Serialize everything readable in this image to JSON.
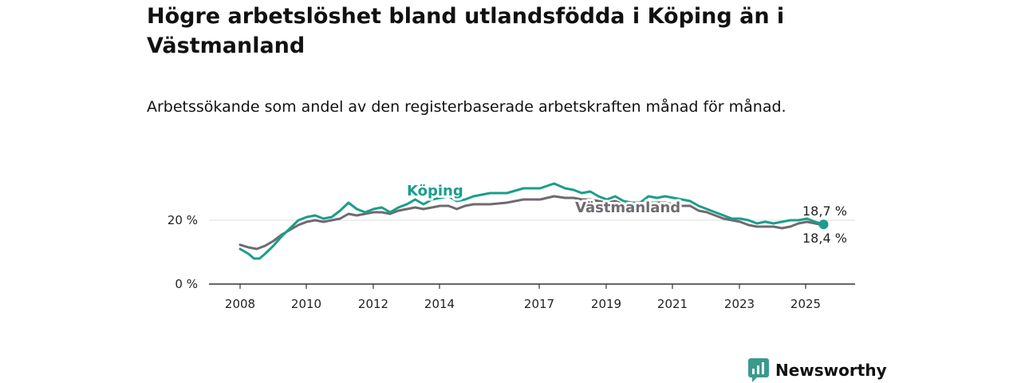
{
  "title": "Högre arbetslöshet bland utlandsfödda i Köping än i Västmanland",
  "subtitle": "Arbetssökande som andel av den registerbaserade arbetskraften månad för månad.",
  "brand": "Newsworthy",
  "colors": {
    "koping": "#1a9e8c",
    "vastmanland": "#6f6a70",
    "brand": "#3a9a8e",
    "axis": "#333333",
    "grid": "#dddddd"
  },
  "chart_data": {
    "type": "line",
    "title": "Högre arbetslöshet bland utlandsfödda i Köping än i Västmanland",
    "subtitle": "Arbetssökande som andel av den registerbaserade arbetskraften månad för månad.",
    "xlabel": "",
    "ylabel": "",
    "x_ticks": [
      "2008",
      "2010",
      "2012",
      "2014",
      "2017",
      "2019",
      "2021",
      "2023",
      "2025"
    ],
    "y_ticks": [
      "0 %",
      "20 %"
    ],
    "ylim": [
      0,
      33
    ],
    "grid": "horizontal",
    "legend": "inline labels",
    "end_labels": {
      "koping": "18,7 %",
      "vastmanland": "18,4 %"
    },
    "series": [
      {
        "name": "Köping",
        "color": "#1a9e8c",
        "points": [
          [
            "2008-01",
            11.0
          ],
          [
            "2008-04",
            9.5
          ],
          [
            "2008-06",
            8.0
          ],
          [
            "2008-08",
            8.0
          ],
          [
            "2008-10",
            9.5
          ],
          [
            "2009-01",
            12.0
          ],
          [
            "2009-04",
            15.0
          ],
          [
            "2009-07",
            17.5
          ],
          [
            "2009-10",
            20.0
          ],
          [
            "2010-01",
            21.0
          ],
          [
            "2010-04",
            21.5
          ],
          [
            "2010-07",
            20.5
          ],
          [
            "2010-10",
            21.0
          ],
          [
            "2011-01",
            23.0
          ],
          [
            "2011-04",
            25.5
          ],
          [
            "2011-07",
            23.5
          ],
          [
            "2011-10",
            22.5
          ],
          [
            "2012-01",
            23.5
          ],
          [
            "2012-04",
            24.0
          ],
          [
            "2012-07",
            22.5
          ],
          [
            "2012-10",
            24.0
          ],
          [
            "2013-01",
            25.0
          ],
          [
            "2013-04",
            26.5
          ],
          [
            "2013-07",
            25.0
          ],
          [
            "2013-10",
            26.5
          ],
          [
            "2014-01",
            27.0
          ],
          [
            "2014-04",
            27.5
          ],
          [
            "2014-07",
            26.0
          ],
          [
            "2014-10",
            26.5
          ],
          [
            "2015-01",
            27.5
          ],
          [
            "2015-07",
            28.5
          ],
          [
            "2016-01",
            28.5
          ],
          [
            "2016-07",
            30.0
          ],
          [
            "2017-01",
            30.0
          ],
          [
            "2017-06",
            31.5
          ],
          [
            "2017-10",
            30.0
          ],
          [
            "2018-01",
            29.5
          ],
          [
            "2018-04",
            28.5
          ],
          [
            "2018-07",
            29.0
          ],
          [
            "2018-10",
            27.5
          ],
          [
            "2019-01",
            26.5
          ],
          [
            "2019-04",
            27.5
          ],
          [
            "2019-07",
            26.0
          ],
          [
            "2019-10",
            25.5
          ],
          [
            "2020-01",
            25.5
          ],
          [
            "2020-04",
            27.5
          ],
          [
            "2020-07",
            27.0
          ],
          [
            "2020-10",
            27.5
          ],
          [
            "2021-01",
            27.0
          ],
          [
            "2021-04",
            26.5
          ],
          [
            "2021-07",
            26.0
          ],
          [
            "2021-10",
            24.5
          ],
          [
            "2022-01",
            23.5
          ],
          [
            "2022-04",
            22.5
          ],
          [
            "2022-07",
            21.5
          ],
          [
            "2022-10",
            20.5
          ],
          [
            "2023-01",
            20.5
          ],
          [
            "2023-04",
            20.0
          ],
          [
            "2023-07",
            19.0
          ],
          [
            "2023-10",
            19.5
          ],
          [
            "2024-01",
            19.0
          ],
          [
            "2024-04",
            19.5
          ],
          [
            "2024-07",
            20.0
          ],
          [
            "2024-10",
            20.0
          ],
          [
            "2025-01",
            20.5
          ],
          [
            "2025-04",
            19.5
          ],
          [
            "2025-07",
            18.7
          ]
        ]
      },
      {
        "name": "Västmanland",
        "color": "#6f6a70",
        "points": [
          [
            "2008-01",
            12.3
          ],
          [
            "2008-04",
            11.5
          ],
          [
            "2008-07",
            11.0
          ],
          [
            "2008-10",
            12.0
          ],
          [
            "2009-01",
            13.5
          ],
          [
            "2009-04",
            15.5
          ],
          [
            "2009-07",
            17.0
          ],
          [
            "2009-10",
            18.5
          ],
          [
            "2010-01",
            19.5
          ],
          [
            "2010-04",
            20.0
          ],
          [
            "2010-07",
            19.5
          ],
          [
            "2010-10",
            20.0
          ],
          [
            "2011-01",
            20.5
          ],
          [
            "2011-04",
            22.0
          ],
          [
            "2011-07",
            21.5
          ],
          [
            "2011-10",
            22.0
          ],
          [
            "2012-01",
            22.5
          ],
          [
            "2012-04",
            22.5
          ],
          [
            "2012-07",
            22.0
          ],
          [
            "2012-10",
            23.0
          ],
          [
            "2013-01",
            23.5
          ],
          [
            "2013-04",
            24.0
          ],
          [
            "2013-07",
            23.5
          ],
          [
            "2013-10",
            24.0
          ],
          [
            "2014-01",
            24.5
          ],
          [
            "2014-04",
            24.5
          ],
          [
            "2014-07",
            23.5
          ],
          [
            "2014-10",
            24.5
          ],
          [
            "2015-01",
            25.0
          ],
          [
            "2015-07",
            25.0
          ],
          [
            "2016-01",
            25.5
          ],
          [
            "2016-07",
            26.5
          ],
          [
            "2017-01",
            26.5
          ],
          [
            "2017-06",
            27.5
          ],
          [
            "2017-10",
            27.0
          ],
          [
            "2018-01",
            27.0
          ],
          [
            "2018-04",
            26.5
          ],
          [
            "2018-07",
            26.5
          ],
          [
            "2018-10",
            26.0
          ],
          [
            "2019-01",
            25.5
          ],
          [
            "2019-04",
            26.0
          ],
          [
            "2019-07",
            25.0
          ],
          [
            "2019-10",
            24.5
          ],
          [
            "2020-01",
            24.5
          ],
          [
            "2020-04",
            25.5
          ],
          [
            "2020-07",
            25.5
          ],
          [
            "2020-10",
            25.5
          ],
          [
            "2021-01",
            25.0
          ],
          [
            "2021-04",
            24.5
          ],
          [
            "2021-07",
            24.5
          ],
          [
            "2021-10",
            23.0
          ],
          [
            "2022-01",
            22.5
          ],
          [
            "2022-04",
            21.5
          ],
          [
            "2022-07",
            20.5
          ],
          [
            "2022-10",
            20.0
          ],
          [
            "2023-01",
            19.5
          ],
          [
            "2023-04",
            18.5
          ],
          [
            "2023-07",
            18.0
          ],
          [
            "2023-10",
            18.0
          ],
          [
            "2024-01",
            18.0
          ],
          [
            "2024-04",
            17.5
          ],
          [
            "2024-07",
            18.0
          ],
          [
            "2024-10",
            19.0
          ],
          [
            "2025-01",
            19.5
          ],
          [
            "2025-04",
            19.0
          ],
          [
            "2025-07",
            18.4
          ]
        ]
      }
    ]
  }
}
